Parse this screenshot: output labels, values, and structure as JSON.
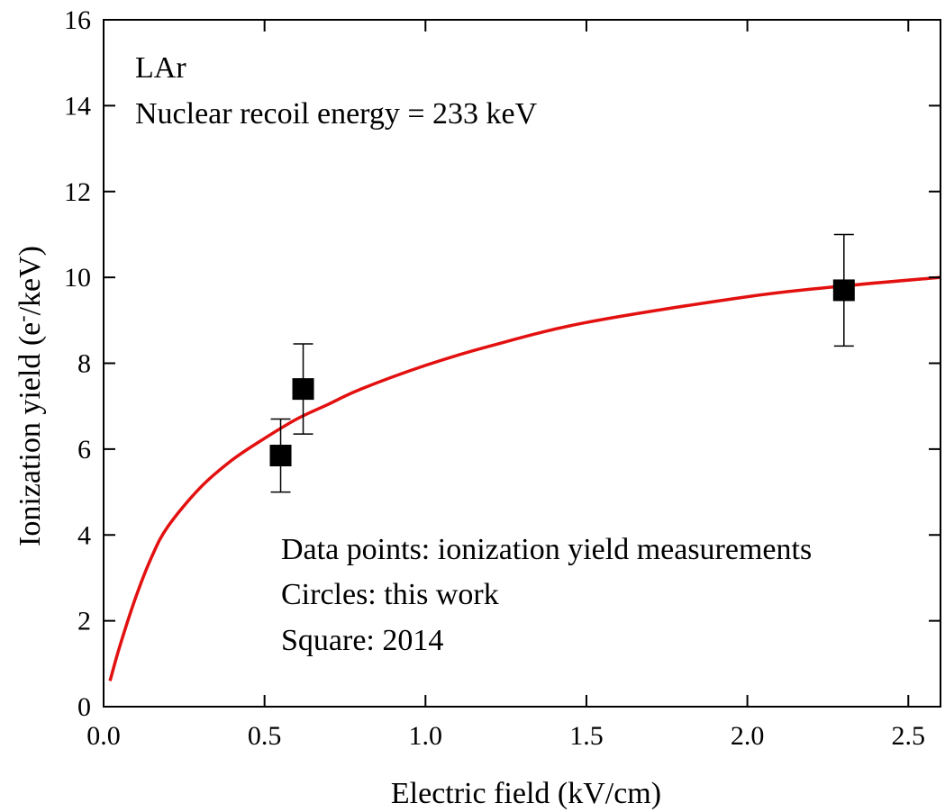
{
  "chart_data": {
    "type": "scatter",
    "xlabel": "Electric field (kV/cm)",
    "ylabel_main": "Ionization yield (e",
    "ylabel_sup": "-",
    "ylabel_end": "/keV)",
    "xlim": [
      0.0,
      2.6
    ],
    "ylim": [
      0,
      16
    ],
    "xticks": [
      0.0,
      0.5,
      1.0,
      1.5,
      2.0,
      2.5
    ],
    "xtick_labels": [
      "0.0",
      "0.5",
      "1.0",
      "1.5",
      "2.0",
      "2.5"
    ],
    "yticks": [
      0,
      2,
      4,
      6,
      8,
      10,
      12,
      14,
      16
    ],
    "ytick_labels": [
      "0",
      "2",
      "4",
      "6",
      "8",
      "10",
      "12",
      "14",
      "16"
    ],
    "grid": false,
    "series": [
      {
        "kind": "points",
        "marker": "square",
        "color": "#000000",
        "points": [
          {
            "x": 0.55,
            "y": 5.85,
            "err_low": 5.0,
            "err_high": 6.7
          },
          {
            "x": 0.62,
            "y": 7.4,
            "err_low": 6.35,
            "err_high": 8.45
          },
          {
            "x": 2.3,
            "y": 9.7,
            "err_low": 8.4,
            "err_high": 11.0
          }
        ]
      },
      {
        "kind": "curve",
        "color": "#e31010",
        "x": [
          0.02,
          0.05,
          0.1,
          0.15,
          0.2,
          0.3,
          0.4,
          0.5,
          0.6,
          0.7,
          0.8,
          1.0,
          1.2,
          1.5,
          2.0,
          2.3,
          2.6
        ],
        "y": [
          0.6,
          1.4,
          2.55,
          3.5,
          4.2,
          5.1,
          5.75,
          6.25,
          6.7,
          7.05,
          7.4,
          7.95,
          8.4,
          8.95,
          9.55,
          9.8,
          10.0
        ]
      }
    ],
    "annotations_top": [
      "LAr",
      "Nuclear recoil energy = 233 keV"
    ],
    "annotations_bottom": [
      "Data points: ionization yield measurements",
      "Circles: this work",
      "Square: 2014"
    ]
  }
}
